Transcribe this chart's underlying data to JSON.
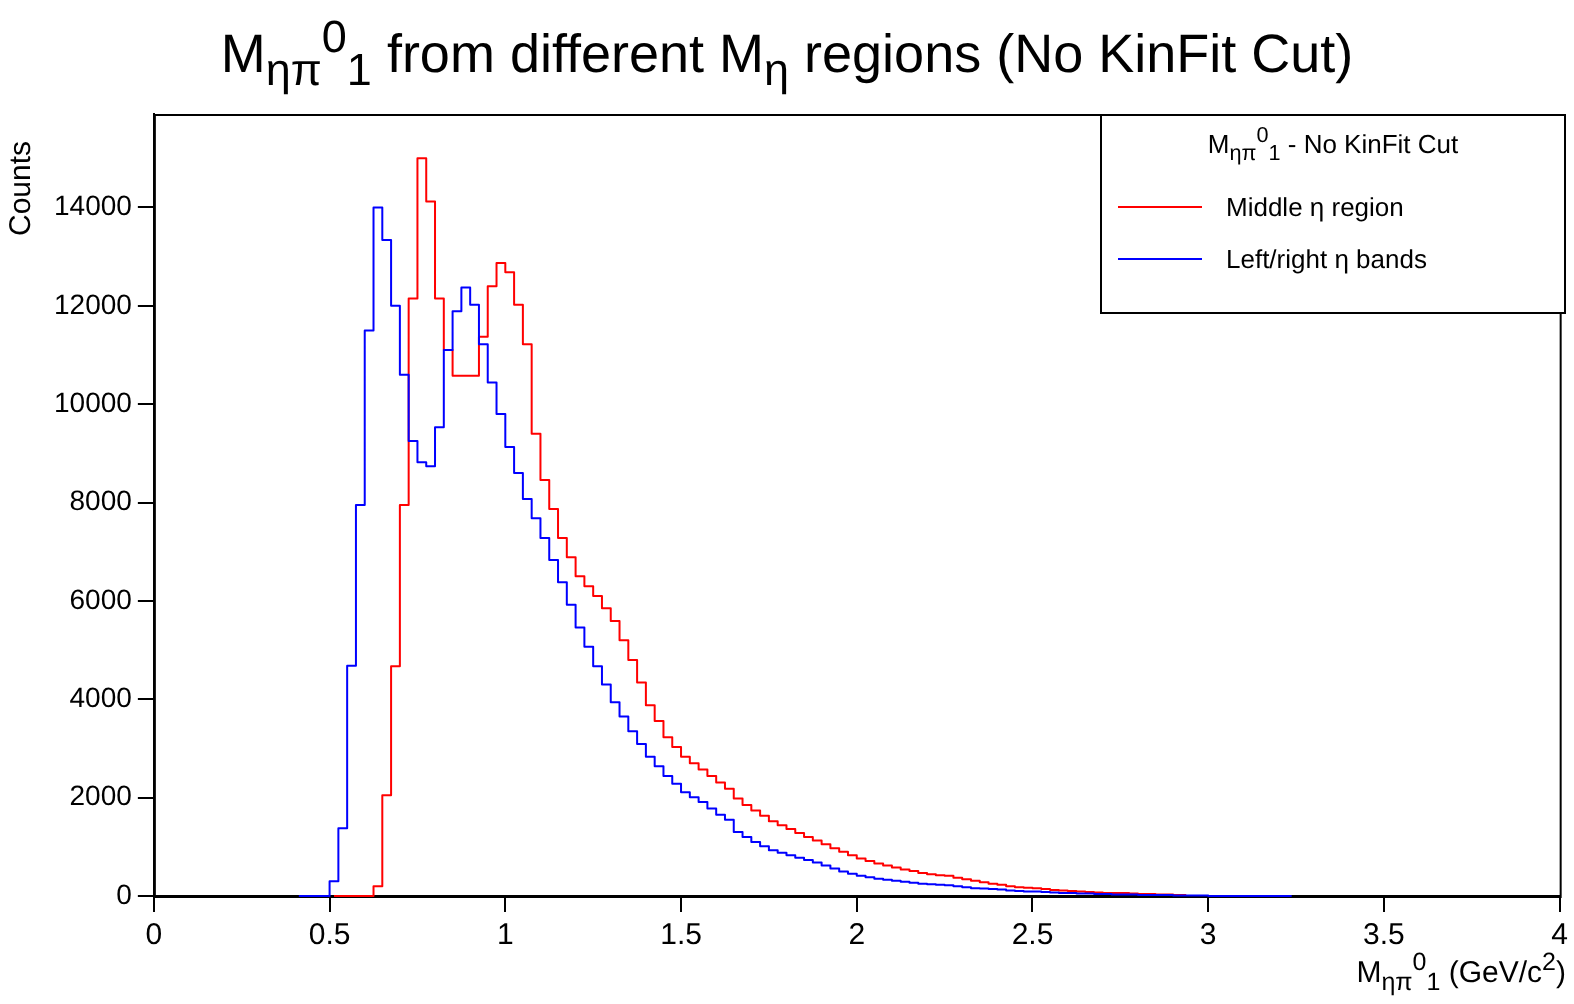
{
  "chart_data": {
    "type": "step",
    "title": "M$_{ηπ}$$^{0}$$_{1}$ from different M$_{η}$ regions (No KinFit Cut)",
    "xlabel": "M$_{ηπ}$$^{0}$$_{1}$ (GeV/c$^{2}$)",
    "ylabel": "Counts",
    "legend_title": "M$_{ηπ}$$^{0}$$_{1}$ - No KinFit Cut",
    "x": [
      0.4125,
      0.4375,
      0.4625,
      0.4875,
      0.5125,
      0.5375,
      0.5625,
      0.5875,
      0.6125,
      0.6375,
      0.6625,
      0.6875,
      0.7125,
      0.7375,
      0.7625,
      0.7875,
      0.8125,
      0.8375,
      0.8625,
      0.8875,
      0.9125,
      0.9375,
      0.9625,
      0.9875,
      1.0125,
      1.0375,
      1.0625,
      1.0875,
      1.1125,
      1.1375,
      1.1625,
      1.1875,
      1.2125,
      1.2375,
      1.2625,
      1.2875,
      1.3125,
      1.3375,
      1.3625,
      1.3875,
      1.4125,
      1.4375,
      1.4625,
      1.4875,
      1.5125,
      1.5375,
      1.5625,
      1.5875,
      1.6125,
      1.6375,
      1.6625,
      1.6875,
      1.7125,
      1.7375,
      1.7625,
      1.7875,
      1.8125,
      1.8375,
      1.8625,
      1.8875,
      1.9125,
      1.9375,
      1.9625,
      1.9875,
      2.0125,
      2.0375,
      2.0625,
      2.0875,
      2.1125,
      2.1375,
      2.1625,
      2.1875,
      2.2125,
      2.2375,
      2.2625,
      2.2875,
      2.3125,
      2.3375,
      2.3625,
      2.3875,
      2.4125,
      2.4375,
      2.4625,
      2.4875,
      2.5125,
      2.5375,
      2.5625,
      2.5875,
      2.6125,
      2.6375,
      2.6625,
      2.6875,
      2.7125,
      2.7375,
      2.7625,
      2.7875,
      2.8125,
      2.8375,
      2.8625,
      2.8875,
      2.9125,
      2.9375,
      2.9625,
      2.9875,
      3.0125,
      3.0375,
      3.0625,
      3.0875,
      3.1125,
      3.1375,
      3.1625,
      3.1875,
      3.2125,
      3.2375
    ],
    "series": [
      {
        "name": "Middle η region",
        "color": "#ff0000",
        "values": [
          null,
          null,
          null,
          null,
          0,
          0,
          0,
          0,
          0,
          200,
          2050,
          4670,
          7950,
          12150,
          15000,
          14120,
          12150,
          11100,
          10580,
          10580,
          10580,
          11370,
          12400,
          12870,
          12680,
          12020,
          11220,
          9400,
          8460,
          7870,
          7280,
          6890,
          6500,
          6300,
          6100,
          5850,
          5590,
          5200,
          4800,
          4340,
          3880,
          3560,
          3230,
          3030,
          2830,
          2700,
          2570,
          2440,
          2310,
          2180,
          1980,
          1850,
          1740,
          1630,
          1520,
          1440,
          1360,
          1280,
          1200,
          1130,
          1050,
          970,
          900,
          830,
          760,
          710,
          660,
          620,
          580,
          540,
          510,
          470,
          440,
          420,
          410,
          370,
          340,
          310,
          280,
          250,
          230,
          200,
          180,
          170,
          160,
          140,
          120,
          110,
          100,
          90,
          80,
          70,
          60,
          60,
          60,
          50,
          40,
          40,
          30,
          30,
          20,
          20,
          null,
          null,
          null,
          null,
          null,
          null,
          null,
          null,
          null,
          null,
          null,
          null
        ]
      },
      {
        "name": "Left/right η bands",
        "color": "#0000ff",
        "values": [
          0,
          0,
          0,
          0,
          300,
          1380,
          4680,
          7950,
          11500,
          14000,
          13340,
          12000,
          10600,
          9250,
          8820,
          8740,
          9530,
          11100,
          11890,
          12370,
          12020,
          11220,
          10440,
          9800,
          9130,
          8600,
          8070,
          7680,
          7280,
          6830,
          6380,
          5920,
          5460,
          5070,
          4670,
          4300,
          3940,
          3650,
          3350,
          3090,
          2830,
          2640,
          2440,
          2280,
          2110,
          2010,
          1910,
          1780,
          1650,
          1550,
          1300,
          1200,
          1100,
          1010,
          930,
          880,
          830,
          780,
          730,
          680,
          620,
          560,
          500,
          450,
          410,
          380,
          350,
          330,
          310,
          290,
          270,
          250,
          240,
          230,
          220,
          200,
          180,
          160,
          150,
          140,
          130,
          110,
          100,
          90,
          90,
          80,
          70,
          60,
          60,
          50,
          50,
          40,
          40,
          30,
          30,
          30,
          20,
          20,
          20,
          20,
          10,
          10,
          10,
          10,
          0,
          0,
          0,
          0,
          0,
          0,
          0,
          0,
          0,
          0
        ]
      }
    ],
    "xlim": [
      0,
      4
    ],
    "xticks": [
      0,
      0.5,
      1,
      1.5,
      2,
      2.5,
      3,
      3.5,
      4
    ],
    "ylim": [
      0,
      15900
    ],
    "yticks": [
      0,
      2000,
      4000,
      6000,
      8000,
      10000,
      12000,
      14000
    ],
    "grid": false,
    "legend": "top right"
  }
}
